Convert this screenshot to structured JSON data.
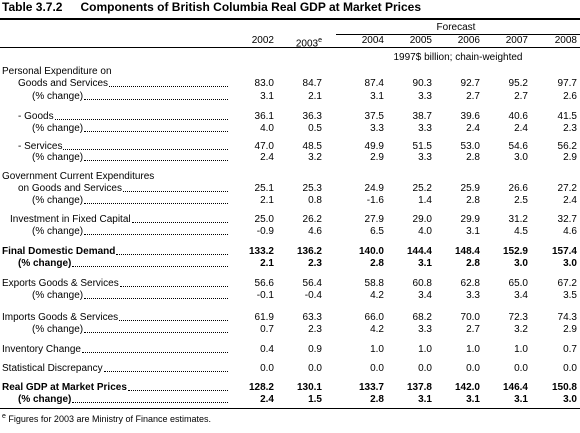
{
  "title": {
    "number": "Table 3.7.2",
    "text": "Components of British Columbia Real GDP at Market Prices"
  },
  "header": {
    "forecast": "Forecast",
    "years": [
      "2002",
      "2003",
      "2004",
      "2005",
      "2006",
      "2007",
      "2008"
    ],
    "year_note": "e",
    "units": "1997$ billion; chain-weighted"
  },
  "rows": [
    {
      "label": "Personal Expenditure on"
    },
    {
      "label": "Goods and Services",
      "values": [
        "83.0",
        "84.7",
        "87.4",
        "90.3",
        "92.7",
        "95.2",
        "97.7"
      ]
    },
    {
      "label": "(% change)",
      "values": [
        "3.1",
        "2.1",
        "3.1",
        "3.3",
        "2.7",
        "2.7",
        "2.6"
      ]
    },
    {
      "label": "- Goods",
      "values": [
        "36.1",
        "36.3",
        "37.5",
        "38.7",
        "39.6",
        "40.6",
        "41.5"
      ]
    },
    {
      "label": "(% change)",
      "values": [
        "4.0",
        "0.5",
        "3.3",
        "3.3",
        "2.4",
        "2.4",
        "2.3"
      ]
    },
    {
      "label": "- Services",
      "values": [
        "47.0",
        "48.5",
        "49.9",
        "51.5",
        "53.0",
        "54.6",
        "56.2"
      ]
    },
    {
      "label": "(% change)",
      "values": [
        "2.4",
        "3.2",
        "2.9",
        "3.3",
        "2.8",
        "3.0",
        "2.9"
      ]
    },
    {
      "label": "Government Current Expenditures"
    },
    {
      "label": "on Goods and Services",
      "values": [
        "25.1",
        "25.3",
        "24.9",
        "25.2",
        "25.9",
        "26.6",
        "27.2"
      ]
    },
    {
      "label": "(% change)",
      "values": [
        "2.1",
        "0.8",
        "-1.6",
        "1.4",
        "2.8",
        "2.5",
        "2.4"
      ]
    },
    {
      "label": "Investment in Fixed Capital",
      "values": [
        "25.0",
        "26.2",
        "27.9",
        "29.0",
        "29.9",
        "31.2",
        "32.7"
      ]
    },
    {
      "label": "(% change)",
      "values": [
        "-0.9",
        "4.6",
        "6.5",
        "4.0",
        "3.1",
        "4.5",
        "4.6"
      ]
    },
    {
      "label": "Final Domestic Demand",
      "bold": true,
      "values": [
        "133.2",
        "136.2",
        "140.0",
        "144.4",
        "148.4",
        "152.9",
        "157.4"
      ]
    },
    {
      "label": "(% change)",
      "bold": true,
      "values": [
        "2.1",
        "2.3",
        "2.8",
        "3.1",
        "2.8",
        "3.0",
        "3.0"
      ]
    },
    {
      "label": "Exports Goods & Services",
      "values": [
        "56.6",
        "56.4",
        "58.8",
        "60.8",
        "62.8",
        "65.0",
        "67.2"
      ]
    },
    {
      "label": "(% change)",
      "values": [
        "-0.1",
        "-0.4",
        "4.2",
        "3.4",
        "3.3",
        "3.4",
        "3.5"
      ]
    },
    {
      "label": "Imports Goods & Services",
      "values": [
        "61.9",
        "63.3",
        "66.0",
        "68.2",
        "70.0",
        "72.3",
        "74.3"
      ]
    },
    {
      "label": "(% change)",
      "values": [
        "0.7",
        "2.3",
        "4.2",
        "3.3",
        "2.7",
        "3.2",
        "2.9"
      ]
    },
    {
      "label": "Inventory Change",
      "values": [
        "0.4",
        "0.9",
        "1.0",
        "1.0",
        "1.0",
        "1.0",
        "0.7"
      ]
    },
    {
      "label": "Statistical Discrepancy",
      "values": [
        "0.0",
        "0.0",
        "0.0",
        "0.0",
        "0.0",
        "0.0",
        "0.0"
      ]
    },
    {
      "label": "Real GDP at Market Prices",
      "bold": true,
      "values": [
        "128.2",
        "130.1",
        "133.7",
        "137.8",
        "142.0",
        "146.4",
        "150.8"
      ]
    },
    {
      "label": "(% change)",
      "bold": true,
      "values": [
        "2.4",
        "1.5",
        "2.8",
        "3.1",
        "3.1",
        "3.1",
        "3.0"
      ]
    }
  ],
  "footnote": {
    "mark": "e",
    "text": "Figures for 2003 are Ministry of Finance estimates."
  }
}
